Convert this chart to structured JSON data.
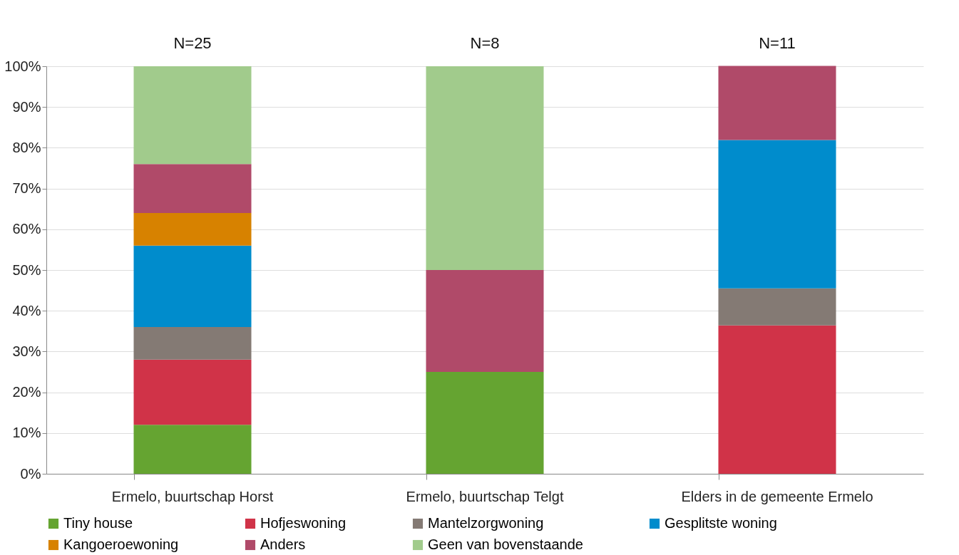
{
  "chart_data": {
    "type": "bar",
    "stacked": true,
    "categories": [
      "Ermelo, buurtschap Horst",
      "Ermelo, buurtschap Telgt",
      "Elders in de gemeente Ermelo"
    ],
    "series": [
      {
        "name": "Tiny house",
        "color": "#65a431",
        "values": [
          12,
          25,
          0
        ]
      },
      {
        "name": "Hofjeswoning",
        "color": "#d03348",
        "values": [
          16,
          0,
          36.4
        ]
      },
      {
        "name": "Mantelzorgwoning",
        "color": "#847a74",
        "values": [
          8,
          0,
          9.1
        ]
      },
      {
        "name": "Gesplitste woning",
        "color": "#008ccc",
        "values": [
          20,
          0,
          36.4
        ]
      },
      {
        "name": "Kangoeroewoning",
        "color": "#d78200",
        "values": [
          8,
          0,
          0
        ]
      },
      {
        "name": "Anders",
        "color": "#b04a69",
        "values": [
          12,
          25,
          18.2
        ]
      },
      {
        "name": "Geen van bovenstaande",
        "color": "#a1cb8c",
        "values": [
          24,
          50,
          0
        ]
      }
    ],
    "ylim": [
      0,
      100
    ],
    "yticks": [
      {
        "value": 0,
        "label": "0%"
      },
      {
        "value": 10,
        "label": "10%"
      },
      {
        "value": 20,
        "label": "20%"
      },
      {
        "value": 30,
        "label": "30%"
      },
      {
        "value": 40,
        "label": "40%"
      },
      {
        "value": 50,
        "label": "50%"
      },
      {
        "value": 60,
        "label": "60%"
      },
      {
        "value": 70,
        "label": "70%"
      },
      {
        "value": 80,
        "label": "80%"
      },
      {
        "value": 90,
        "label": "90%"
      },
      {
        "value": 100,
        "label": "100%"
      }
    ],
    "grid": "y",
    "legend": "bottom",
    "annotations": [
      {
        "text": "N=25",
        "x": "Ermelo, buurtschap Horst",
        "y": 100
      },
      {
        "text": "N=8",
        "x": "Ermelo, buurtschap Telgt",
        "y": 100
      },
      {
        "text": "N=11",
        "x": "Elders in de gemeente Ermelo",
        "y": 100
      }
    ]
  }
}
